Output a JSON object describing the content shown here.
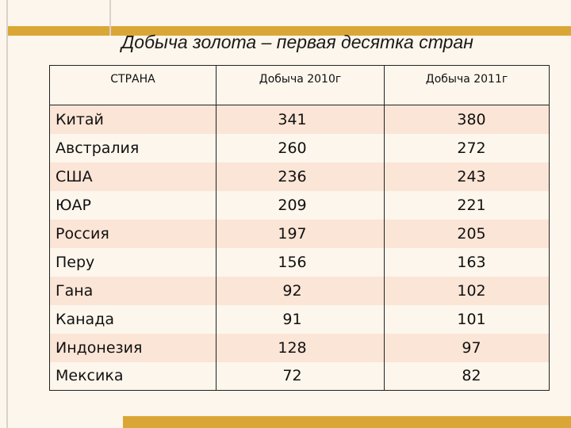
{
  "title": "Добыча золота – первая десятка стран",
  "table": {
    "headers": [
      "СТРАНА",
      "Добыча 2010г",
      "Добыча 2011г"
    ],
    "rows": [
      {
        "country": "Китай",
        "y2010": "341",
        "y2011": "380"
      },
      {
        "country": "Австралия",
        "y2010": "260",
        "y2011": "272"
      },
      {
        "country": "США",
        "y2010": "236",
        "y2011": "243"
      },
      {
        "country": "ЮАР",
        "y2010": "209",
        "y2011": "221"
      },
      {
        "country": "Россия",
        "y2010": "197",
        "y2011": "205"
      },
      {
        "country": "Перу",
        "y2010": "156",
        "y2011": "163"
      },
      {
        "country": "Гана",
        "y2010": "92",
        "y2011": "102"
      },
      {
        "country": "Канада",
        "y2010": "91",
        "y2011": "101"
      },
      {
        "country": "Индонезия",
        "y2010": "128",
        "y2011": "97"
      },
      {
        "country": "Мексика",
        "y2010": "72",
        "y2011": "82"
      }
    ]
  },
  "colors": {
    "accent_band": "#daa737",
    "row_stripe": "#fbe5d6",
    "background": "#fdf6ec"
  }
}
